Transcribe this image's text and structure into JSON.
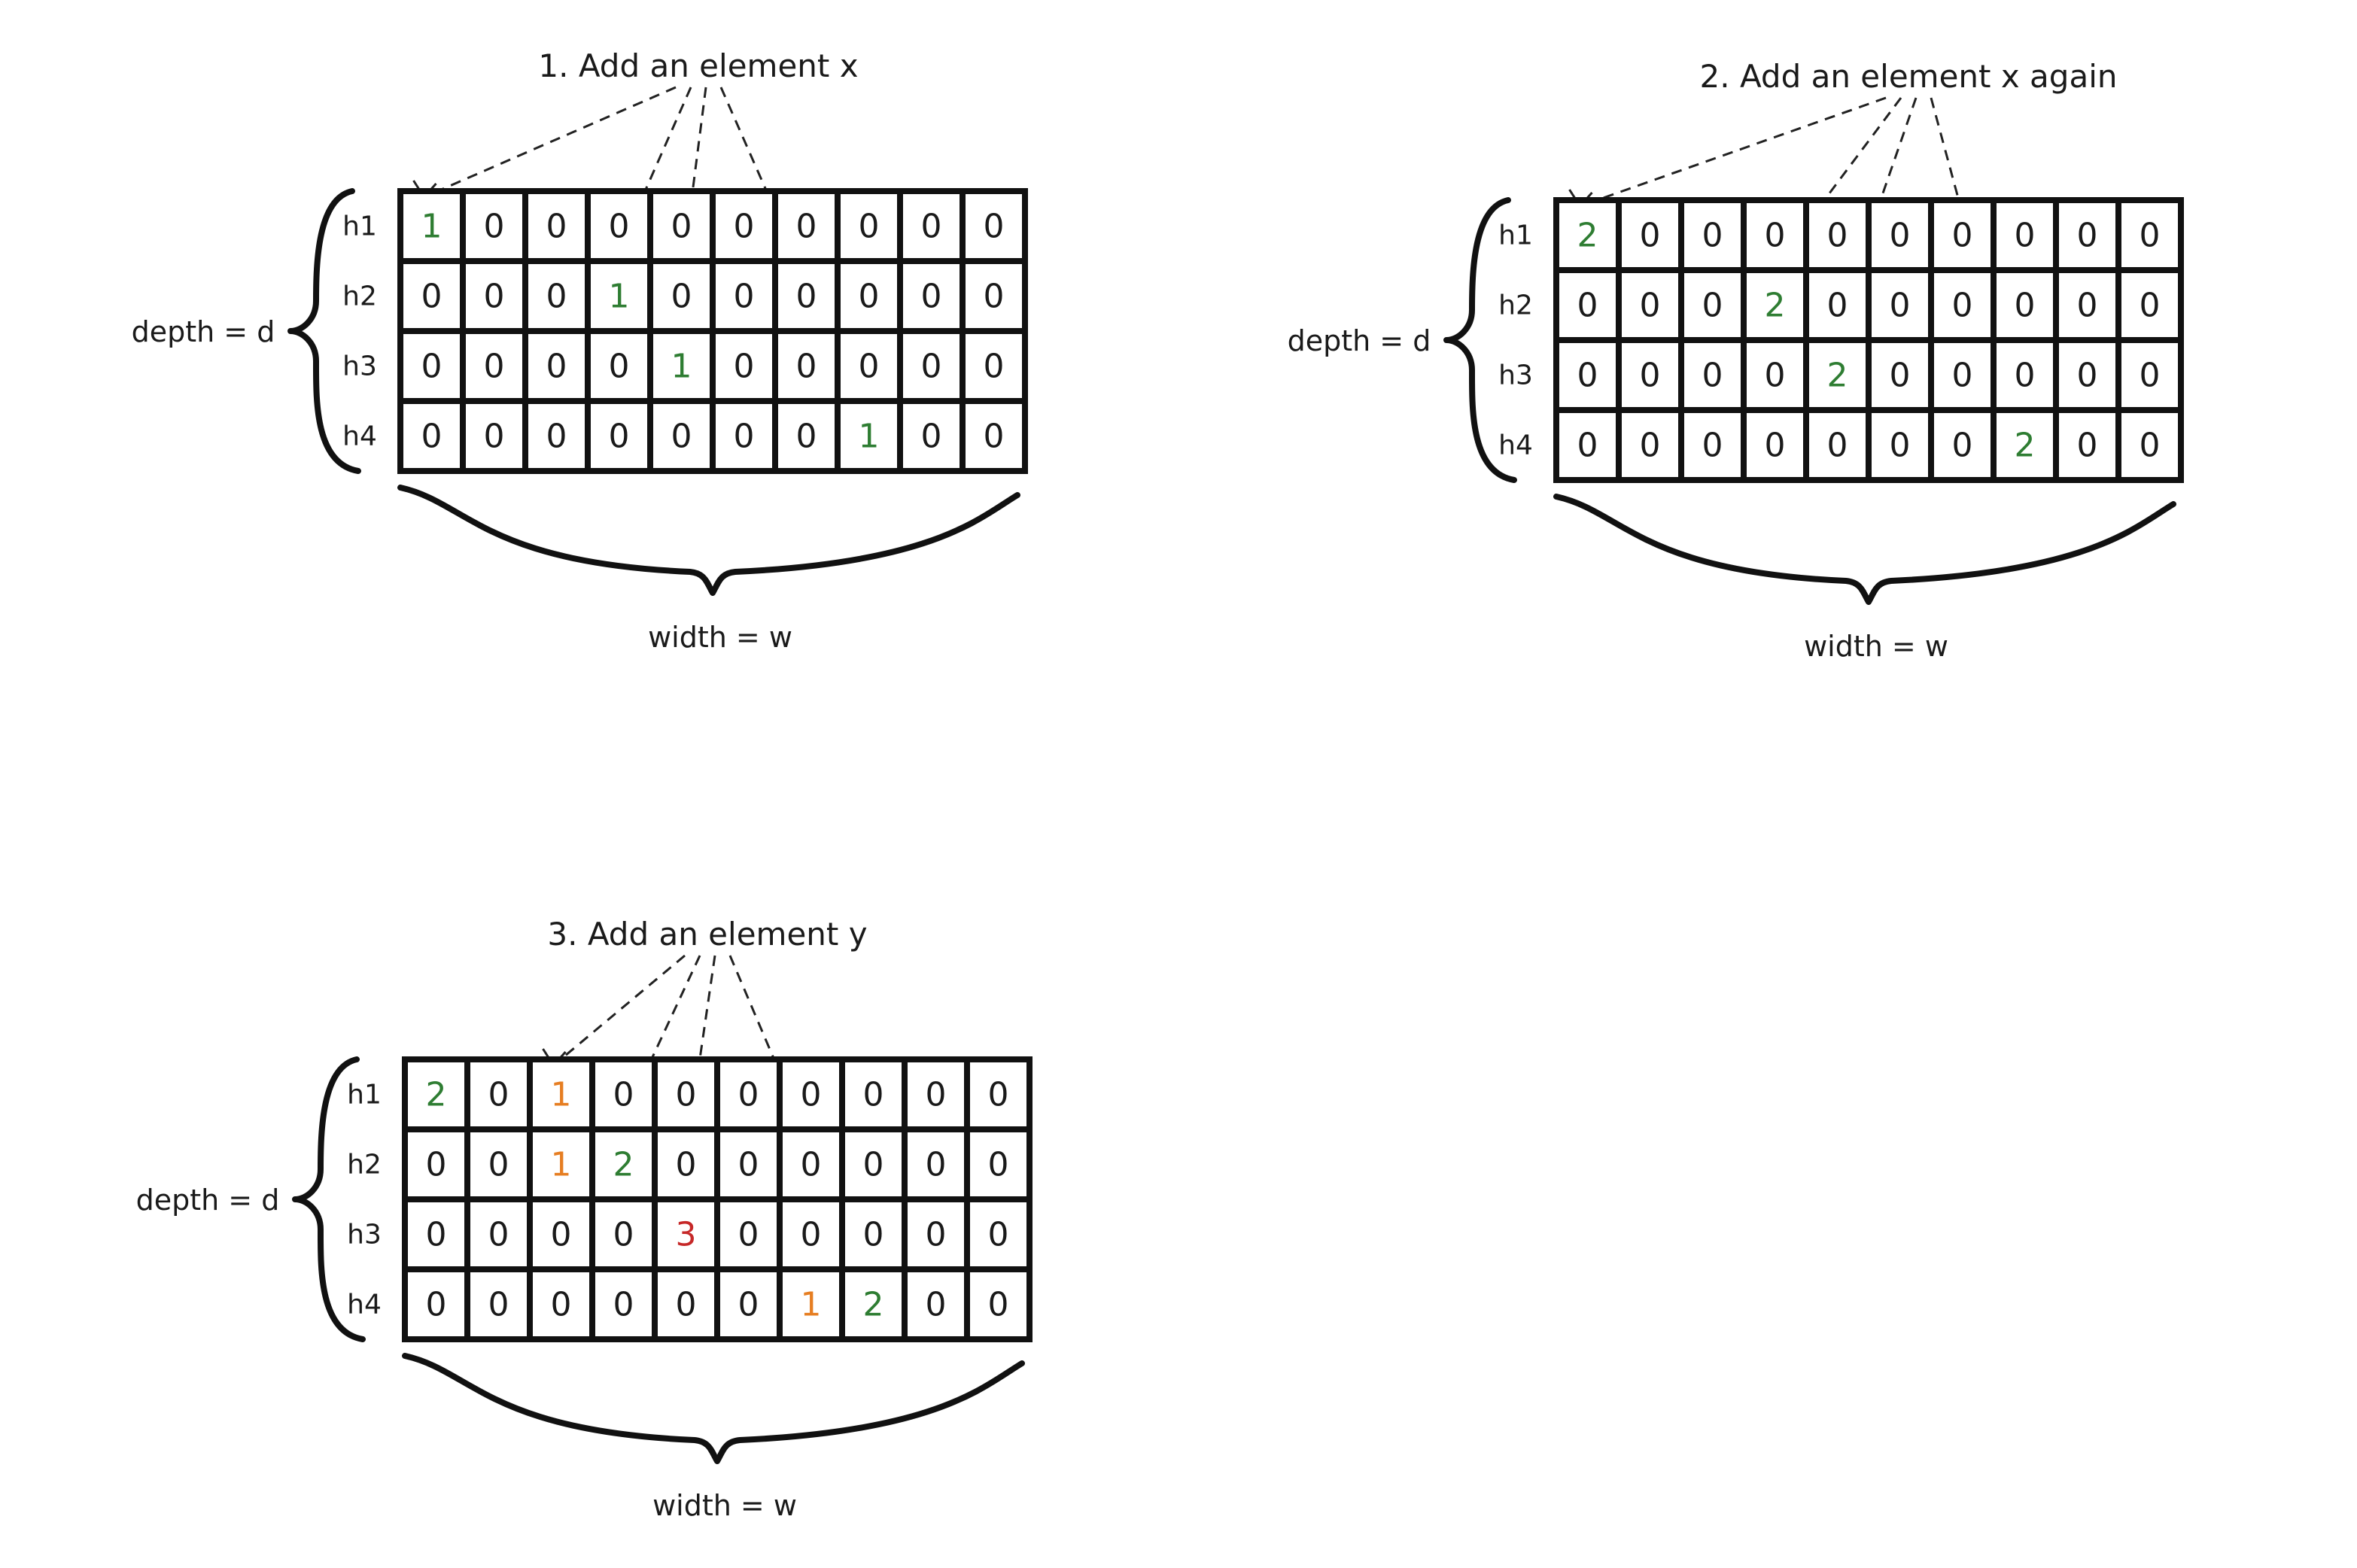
{
  "panels": [
    {
      "title": "1. Add an element x",
      "depth_label": "depth = d",
      "width_label": "width = w",
      "rows": [
        "h1",
        "h2",
        "h3",
        "h4"
      ],
      "grid": [
        [
          "1",
          "0",
          "0",
          "0",
          "0",
          "0",
          "0",
          "0",
          "0",
          "0"
        ],
        [
          "0",
          "0",
          "0",
          "1",
          "0",
          "0",
          "0",
          "0",
          "0",
          "0"
        ],
        [
          "0",
          "0",
          "0",
          "0",
          "1",
          "0",
          "0",
          "0",
          "0",
          "0"
        ],
        [
          "0",
          "0",
          "0",
          "0",
          "0",
          "0",
          "0",
          "1",
          "0",
          "0"
        ]
      ],
      "highlights": [
        {
          "row": 0,
          "col": 0,
          "color": "#2e7d32"
        },
        {
          "row": 1,
          "col": 3,
          "color": "#2e7d32"
        },
        {
          "row": 2,
          "col": 4,
          "color": "#2e7d32"
        },
        {
          "row": 3,
          "col": 7,
          "color": "#2e7d32"
        }
      ]
    },
    {
      "title": "2. Add an element x again",
      "depth_label": "depth = d",
      "width_label": "width = w",
      "rows": [
        "h1",
        "h2",
        "h3",
        "h4"
      ],
      "grid": [
        [
          "2",
          "0",
          "0",
          "0",
          "0",
          "0",
          "0",
          "0",
          "0",
          "0"
        ],
        [
          "0",
          "0",
          "0",
          "2",
          "0",
          "0",
          "0",
          "0",
          "0",
          "0"
        ],
        [
          "0",
          "0",
          "0",
          "0",
          "2",
          "0",
          "0",
          "0",
          "0",
          "0"
        ],
        [
          "0",
          "0",
          "0",
          "0",
          "0",
          "0",
          "0",
          "2",
          "0",
          "0"
        ]
      ],
      "highlights": [
        {
          "row": 0,
          "col": 0,
          "color": "#2e7d32"
        },
        {
          "row": 1,
          "col": 3,
          "color": "#2e7d32"
        },
        {
          "row": 2,
          "col": 4,
          "color": "#2e7d32"
        },
        {
          "row": 3,
          "col": 7,
          "color": "#2e7d32"
        }
      ]
    },
    {
      "title": "3. Add an element y",
      "depth_label": "depth = d",
      "width_label": "width = w",
      "rows": [
        "h1",
        "h2",
        "h3",
        "h4"
      ],
      "grid": [
        [
          "2",
          "0",
          "1",
          "0",
          "0",
          "0",
          "0",
          "0",
          "0",
          "0"
        ],
        [
          "0",
          "0",
          "1",
          "2",
          "0",
          "0",
          "0",
          "0",
          "0",
          "0"
        ],
        [
          "0",
          "0",
          "0",
          "0",
          "3",
          "0",
          "0",
          "0",
          "0",
          "0"
        ],
        [
          "0",
          "0",
          "0",
          "0",
          "0",
          "0",
          "1",
          "2",
          "0",
          "0"
        ]
      ],
      "highlights": [
        {
          "row": 0,
          "col": 0,
          "color": "#2e7d32"
        },
        {
          "row": 0,
          "col": 2,
          "color": "#e67e22"
        },
        {
          "row": 1,
          "col": 2,
          "color": "#e67e22"
        },
        {
          "row": 1,
          "col": 3,
          "color": "#2e7d32"
        },
        {
          "row": 2,
          "col": 4,
          "color": "#c62828"
        },
        {
          "row": 3,
          "col": 6,
          "color": "#e67e22"
        },
        {
          "row": 3,
          "col": 7,
          "color": "#2e7d32"
        }
      ]
    }
  ]
}
